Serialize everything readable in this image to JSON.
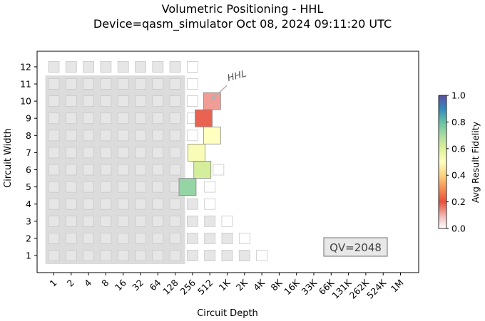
{
  "chart_data": {
    "type": "heatmap",
    "title": "Volumetric Positioning - HHL",
    "subtitle": "Device=qasm_simulator  Oct 08, 2024 09:11:20 UTC",
    "xlabel": "Circuit Depth",
    "ylabel": "Circuit Width",
    "x_ticks": [
      "1",
      "2",
      "4",
      "8",
      "16",
      "32",
      "64",
      "128",
      "256",
      "512",
      "1K",
      "2K",
      "4K",
      "8K",
      "16K",
      "33K",
      "66K",
      "131K",
      "262K",
      "524K",
      "1M"
    ],
    "y_ticks": [
      "1",
      "2",
      "3",
      "4",
      "5",
      "6",
      "7",
      "8",
      "9",
      "10",
      "11",
      "12"
    ],
    "grid": false,
    "colorbar": {
      "label": "Avg Result Fidelity",
      "range": [
        0.0,
        1.0
      ],
      "ticks": [
        "0.0",
        "0.2",
        "0.4",
        "0.6",
        "0.8",
        "1.0"
      ]
    },
    "qv_label": "QV=2048",
    "annotation": {
      "text": "HHL",
      "target_width": 10,
      "target_depth": 512
    },
    "volumetric_background": [
      {
        "width": 1,
        "max_depth": "128"
      },
      {
        "width": 2,
        "max_depth": "128"
      },
      {
        "width": 3,
        "max_depth": "128"
      },
      {
        "width": 4,
        "max_depth": "128"
      },
      {
        "width": 5,
        "max_depth": "128"
      },
      {
        "width": 6,
        "max_depth": "128"
      },
      {
        "width": 7,
        "max_depth": "128"
      },
      {
        "width": 8,
        "max_depth": "128"
      },
      {
        "width": 9,
        "max_depth": "128"
      },
      {
        "width": 10,
        "max_depth": "128"
      },
      {
        "width": 11,
        "max_depth": "128"
      }
    ],
    "grid_cells": [
      {
        "width": 12,
        "depths": [
          "1",
          "2",
          "4",
          "8",
          "16",
          "32",
          "64",
          "128"
        ],
        "state": "filled"
      },
      {
        "width": 12,
        "depths": [
          "256"
        ],
        "state": "empty"
      },
      {
        "width": 11,
        "depths": [
          "256"
        ],
        "state": "empty"
      },
      {
        "width": 10,
        "depths": [
          "256"
        ],
        "state": "empty"
      },
      {
        "width": 9,
        "depths": [
          "256"
        ],
        "state": "empty"
      },
      {
        "width": 8,
        "depths": [
          "256"
        ],
        "state": "empty"
      },
      {
        "width": 6,
        "depths": [
          "724"
        ],
        "state": "empty"
      },
      {
        "width": 5,
        "depths": [
          "512"
        ],
        "state": "empty"
      },
      {
        "width": 4,
        "depths": [
          "256"
        ],
        "state": "filled"
      },
      {
        "width": 4,
        "depths": [
          "512"
        ],
        "state": "empty"
      },
      {
        "width": 3,
        "depths": [
          "256",
          "512"
        ],
        "state": "filled"
      },
      {
        "width": 3,
        "depths": [
          "1K"
        ],
        "state": "empty"
      },
      {
        "width": 2,
        "depths": [
          "256",
          "512",
          "1K"
        ],
        "state": "filled"
      },
      {
        "width": 2,
        "depths": [
          "2K"
        ],
        "state": "empty"
      },
      {
        "width": 1,
        "depths": [
          "256",
          "512",
          "1K",
          "2K"
        ],
        "state": "filled"
      },
      {
        "width": 1,
        "depths": [
          "4K"
        ],
        "state": "empty"
      }
    ],
    "series": [
      {
        "name": "HHL",
        "points": [
          {
            "width": 10,
            "depth": 560,
            "fidelity": 0.12
          },
          {
            "width": 9,
            "depth": 400,
            "fidelity": 0.18
          },
          {
            "width": 8,
            "depth": 560,
            "fidelity": 0.5
          },
          {
            "width": 7,
            "depth": 300,
            "fidelity": 0.52
          },
          {
            "width": 6,
            "depth": 380,
            "fidelity": 0.62
          },
          {
            "width": 5,
            "depth": 210,
            "fidelity": 0.73
          }
        ]
      }
    ]
  }
}
